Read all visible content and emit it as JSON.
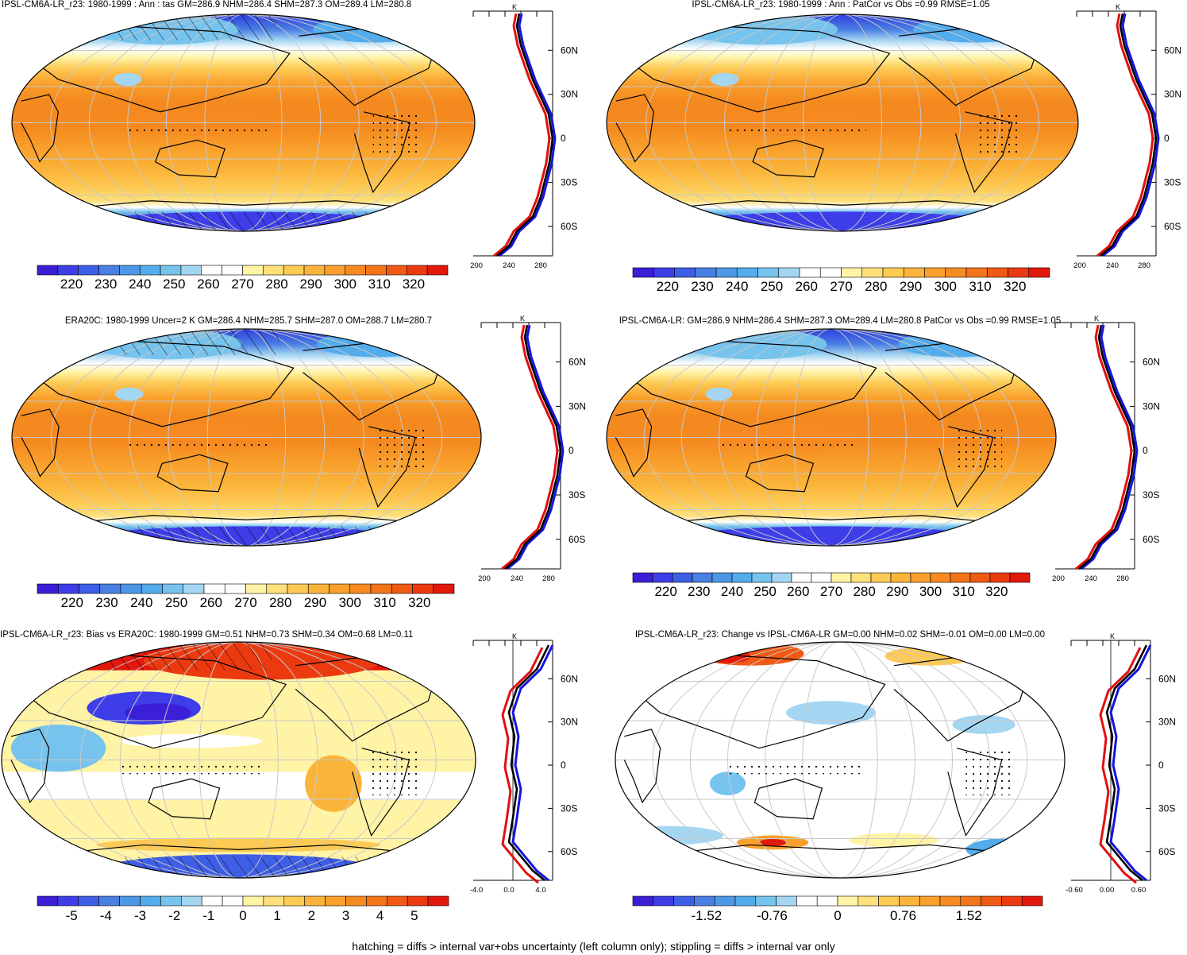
{
  "footnote": "hatching = diffs > internal var+obs uncertainty (left column only); stippling = diffs > internal var only",
  "colors": {
    "abs": [
      "#3a1fd6",
      "#3d3ee8",
      "#3f5ee6",
      "#4a7fe3",
      "#4c98e6",
      "#53aceb",
      "#76c3ee",
      "#a4d6f2",
      "#ffffff",
      "#ffffff",
      "#fff3a6",
      "#ffe07a",
      "#fdca54",
      "#fbb43a",
      "#f9a02c",
      "#f78b22",
      "#f4741a",
      "#f05a14",
      "#ec3a10",
      "#e2180c"
    ],
    "bias": [
      "#3a1fd6",
      "#3d3ee8",
      "#3f5ee6",
      "#4a7fe3",
      "#4c98e6",
      "#53aceb",
      "#76c3ee",
      "#a4d6f2",
      "#ffffff",
      "#ffffff",
      "#fff3a6",
      "#ffe07a",
      "#fdca54",
      "#fbb43a",
      "#f9a02c",
      "#f78b22",
      "#f4741a",
      "#f05a14",
      "#ec3a10",
      "#e2180c"
    ],
    "profile_model": "#000000",
    "profile_obs": "#e21010",
    "profile_ref": "#1414e0"
  },
  "panels": [
    {
      "title": "IPSL-CM6A-LR_r23: 1980-1999 : Ann : tas GM=286.9 NHM=286.4 SHM=287.3 OM=289.4 LM=280.8",
      "kind": "abs",
      "cbar_labels": [
        "220",
        "230",
        "240",
        "250",
        "260",
        "270",
        "280",
        "290",
        "300",
        "310",
        "320"
      ],
      "profile_unit": "K",
      "profile_xticks": [
        "200",
        "240",
        "280"
      ],
      "lat_labels": [
        "60N",
        "30N",
        "0",
        "30S",
        "60S"
      ],
      "hatch": true
    },
    {
      "title": "IPSL-CM6A-LR_r23: 1980-1999 : Ann : PatCor vs Obs =0.99 RMSE=1.05",
      "kind": "abs",
      "cbar_labels": [
        "220",
        "230",
        "240",
        "250",
        "260",
        "270",
        "280",
        "290",
        "300",
        "310",
        "320"
      ],
      "profile_unit": "K",
      "profile_xticks": [
        "200",
        "240",
        "280"
      ],
      "lat_labels": [
        "60N",
        "30N",
        "0",
        "30S",
        "60S"
      ],
      "hatch": false
    },
    {
      "title": "ERA20C: 1980-1999 Uncer=2 K GM=286.4 NHM=285.7 SHM=287.0 OM=288.7 LM=280.7",
      "kind": "abs",
      "cbar_labels": [
        "220",
        "230",
        "240",
        "250",
        "260",
        "270",
        "280",
        "290",
        "300",
        "310",
        "320"
      ],
      "profile_unit": "K",
      "profile_xticks": [
        "200",
        "240",
        "280"
      ],
      "lat_labels": [
        "60N",
        "30N",
        "0",
        "30S",
        "60S"
      ],
      "hatch": true
    },
    {
      "title": "IPSL-CM6A-LR: GM=286.9 NHM=286.4 SHM=287.3 OM=289.4 LM=280.8 PatCor vs Obs =0.99 RMSE=1.05",
      "kind": "abs",
      "cbar_labels": [
        "220",
        "230",
        "240",
        "250",
        "260",
        "270",
        "280",
        "290",
        "300",
        "310",
        "320"
      ],
      "profile_unit": "K",
      "profile_xticks": [
        "200",
        "240",
        "280"
      ],
      "lat_labels": [
        "60N",
        "30N",
        "0",
        "30S",
        "60S"
      ],
      "hatch": false
    },
    {
      "title": "IPSL-CM6A-LR_r23: Bias vs ERA20C: 1980-1999 GM=0.51 NHM=0.73 SHM=0.34 OM=0.68 LM=0.11",
      "kind": "bias",
      "cbar_labels": [
        "-5",
        "-4",
        "-3",
        "-2",
        "-1",
        "0",
        "1",
        "2",
        "3",
        "4",
        "5"
      ],
      "profile_unit": "K",
      "profile_xticks": [
        "-4.0",
        "0.0",
        "4.0"
      ],
      "lat_labels": [
        "60N",
        "30N",
        "0",
        "30S",
        "60S"
      ],
      "hatch": true
    },
    {
      "title": "IPSL-CM6A-LR_r23: Change vs IPSL-CM6A-LR GM=0.00 NHM=0.02 SHM=-0.01 OM=0.00 LM=0.00",
      "kind": "change",
      "cbar_labels": [
        "-1.52",
        "-0.76",
        "0",
        "0.76",
        "1.52"
      ],
      "profile_unit": "K",
      "profile_xticks": [
        "-0.60",
        "0.00",
        "0.60"
      ],
      "lat_labels": [
        "60N",
        "30N",
        "0",
        "30S",
        "60S"
      ],
      "hatch": false
    }
  ]
}
